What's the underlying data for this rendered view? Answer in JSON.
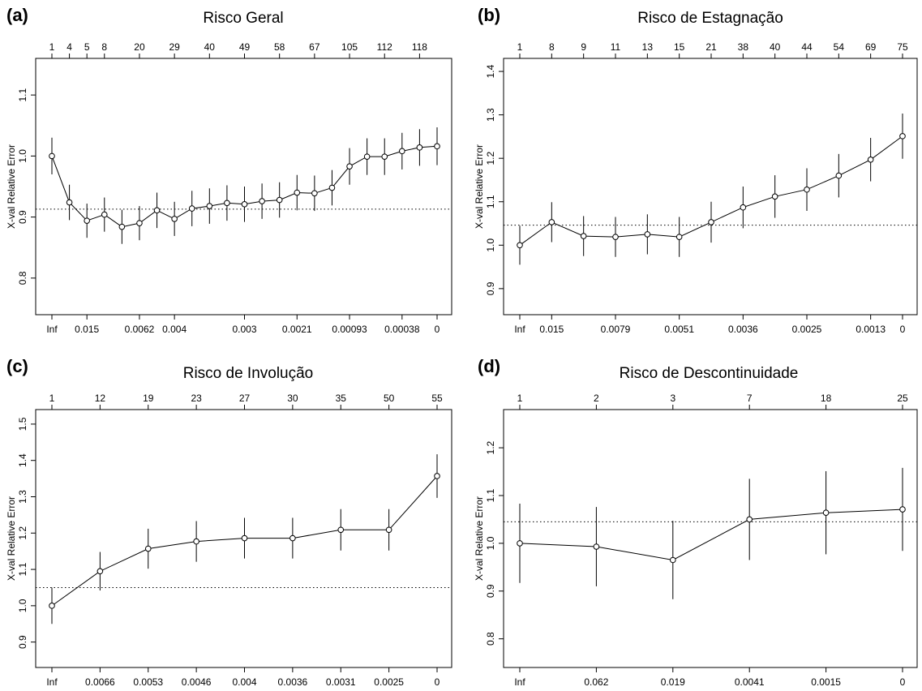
{
  "chart_data": [
    {
      "panel": "(a)",
      "type": "line",
      "title": "Risco Geral",
      "ylabel": "X-val Relative Error",
      "x_bottom_ticks": [
        "Inf",
        "0.015",
        "0.0062",
        "0.004",
        "0.003",
        "0.0021",
        "0.00093",
        "0.00038",
        "0"
      ],
      "x_bottom_tick_index": [
        0,
        2,
        5,
        7,
        11,
        14,
        17,
        20,
        22
      ],
      "x_top_ticks": [
        "1",
        "4",
        "5",
        "8",
        "20",
        "29",
        "40",
        "49",
        "58",
        "67",
        "105",
        "112",
        "118"
      ],
      "x_top_tick_index": [
        0,
        1,
        2,
        3,
        5,
        7,
        9,
        11,
        13,
        15,
        17,
        19,
        21
      ],
      "yticks": [
        0.8,
        0.9,
        1.0,
        1.1
      ],
      "ylim": [
        0.74,
        1.16
      ],
      "reference_line": 0.913,
      "values": [
        1.0,
        0.924,
        0.894,
        0.904,
        0.884,
        0.89,
        0.911,
        0.897,
        0.914,
        0.918,
        0.923,
        0.921,
        0.926,
        0.928,
        0.94,
        0.939,
        0.948,
        0.983,
        0.999,
        0.999,
        1.008,
        1.014,
        1.016
      ],
      "errors": [
        0.03,
        0.029,
        0.028,
        0.028,
        0.028,
        0.028,
        0.029,
        0.028,
        0.029,
        0.029,
        0.029,
        0.029,
        0.029,
        0.029,
        0.029,
        0.029,
        0.029,
        0.03,
        0.03,
        0.03,
        0.03,
        0.03,
        0.031
      ]
    },
    {
      "panel": "(b)",
      "type": "line",
      "title": "Risco de Estagnação",
      "ylabel": "X-val Relative Error",
      "x_bottom_ticks": [
        "Inf",
        "0.015",
        "0.0079",
        "0.0051",
        "0.0036",
        "0.0025",
        "0.0013",
        "0"
      ],
      "x_bottom_tick_index": [
        0,
        1,
        3,
        5,
        7,
        9,
        11,
        12
      ],
      "x_top_ticks": [
        "1",
        "8",
        "9",
        "11",
        "13",
        "15",
        "21",
        "38",
        "40",
        "44",
        "54",
        "69",
        "75"
      ],
      "x_top_tick_index": [
        0,
        1,
        2,
        3,
        4,
        5,
        6,
        7,
        8,
        9,
        10,
        11,
        12
      ],
      "yticks": [
        0.9,
        1.0,
        1.1,
        1.2,
        1.3,
        1.4
      ],
      "ylim": [
        0.84,
        1.43
      ],
      "reference_line": 1.046,
      "values": [
        1.0,
        1.053,
        1.021,
        1.019,
        1.025,
        1.019,
        1.053,
        1.087,
        1.112,
        1.128,
        1.16,
        1.197,
        1.251
      ],
      "errors": [
        0.045,
        0.046,
        0.046,
        0.046,
        0.046,
        0.046,
        0.047,
        0.048,
        0.049,
        0.049,
        0.05,
        0.05,
        0.052
      ]
    },
    {
      "panel": "(c)",
      "type": "line",
      "title": "Risco de Involução",
      "ylabel": "X-val Relative Error",
      "x_bottom_ticks": [
        "Inf",
        "0.0066",
        "0.0053",
        "0.0046",
        "0.004",
        "0.0036",
        "0.0031",
        "0.0025",
        "0"
      ],
      "x_bottom_tick_index": [
        0,
        1,
        2,
        3,
        4,
        5,
        6,
        7,
        8
      ],
      "x_top_ticks": [
        "1",
        "12",
        "19",
        "23",
        "27",
        "30",
        "35",
        "50",
        "55"
      ],
      "x_top_tick_index": [
        0,
        1,
        2,
        3,
        4,
        5,
        6,
        7,
        8
      ],
      "yticks": [
        0.9,
        1.0,
        1.1,
        1.2,
        1.3,
        1.4,
        1.5
      ],
      "ylim": [
        0.83,
        1.54
      ],
      "reference_line": 1.05,
      "values": [
        1.0,
        1.095,
        1.157,
        1.177,
        1.186,
        1.186,
        1.209,
        1.209,
        1.357
      ],
      "errors": [
        0.05,
        0.053,
        0.055,
        0.056,
        0.056,
        0.056,
        0.057,
        0.057,
        0.06
      ]
    },
    {
      "panel": "(d)",
      "type": "line",
      "title": "Risco de Descontinuidade",
      "ylabel": "X-val Relative Error",
      "x_bottom_ticks": [
        "Inf",
        "0.062",
        "0.019",
        "0.0041",
        "0.0015",
        "0"
      ],
      "x_bottom_tick_index": [
        0,
        1,
        2,
        3,
        4,
        5
      ],
      "x_top_ticks": [
        "1",
        "2",
        "3",
        "7",
        "18",
        "25"
      ],
      "x_top_tick_index": [
        0,
        1,
        2,
        3,
        4,
        5
      ],
      "yticks": [
        0.8,
        0.9,
        1.0,
        1.1,
        1.2
      ],
      "ylim": [
        0.74,
        1.28
      ],
      "reference_line": 1.045,
      "values": [
        1.0,
        0.993,
        0.965,
        1.05,
        1.064,
        1.071
      ],
      "errors": [
        0.083,
        0.083,
        0.082,
        0.085,
        0.087,
        0.087
      ]
    }
  ]
}
